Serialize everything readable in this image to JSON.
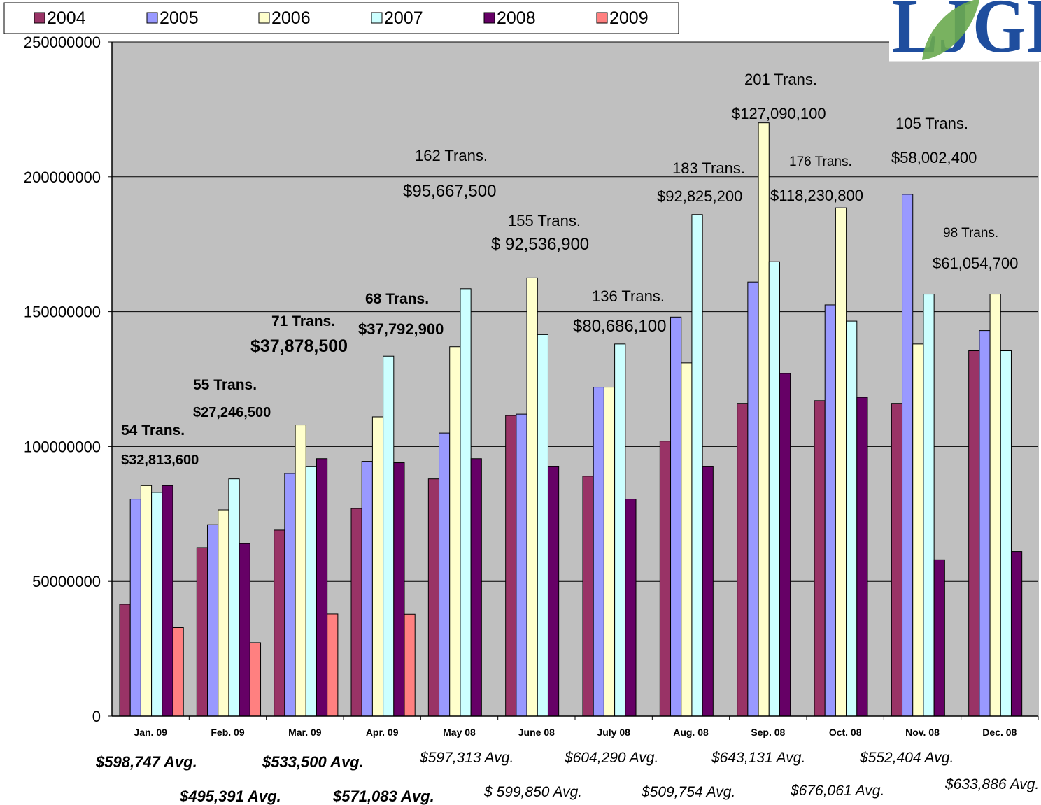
{
  "colors": {
    "plot_bg": "#c0c0c0",
    "accent_green": "#0c8a0c",
    "logo_blue": "#1f4e9e",
    "logo_leaf": "#6aaa4f"
  },
  "logo": {
    "text": "LJGI",
    "icon": "leaf-logo-icon"
  },
  "chart_data": {
    "type": "bar",
    "categories": [
      "Jan. 09",
      "Feb. 09",
      "Mar. 09",
      "Apr. 09",
      "May 08",
      "June 08",
      "July 08",
      "Aug. 08",
      "Sep. 08",
      "Oct. 08",
      "Nov. 08",
      "Dec. 08"
    ],
    "ylim": [
      0,
      250000000
    ],
    "yticks": [
      "0",
      "50000000",
      "100000000",
      "150000000",
      "200000000",
      "250000000"
    ],
    "grid": true,
    "legend": "top",
    "series": [
      {
        "name": "2004",
        "color": "#993366",
        "values": [
          41500000,
          62500000,
          69000000,
          77000000,
          88000000,
          111500000,
          89000000,
          102000000,
          116000000,
          117000000,
          116000000,
          135500000
        ]
      },
      {
        "name": "2005",
        "color": "#9999ff",
        "values": [
          80500000,
          71000000,
          90000000,
          94500000,
          105000000,
          112000000,
          122000000,
          148000000,
          161000000,
          152500000,
          193500000,
          143000000
        ]
      },
      {
        "name": "2006",
        "color": "#ffffcc",
        "values": [
          85500000,
          76500000,
          108000000,
          111000000,
          137000000,
          162500000,
          122000000,
          131000000,
          220000000,
          188500000,
          138000000,
          156500000
        ]
      },
      {
        "name": "2007",
        "color": "#ccffff",
        "values": [
          83000000,
          88000000,
          92500000,
          133500000,
          158500000,
          141500000,
          138000000,
          186000000,
          168500000,
          146500000,
          156500000,
          135500000
        ]
      },
      {
        "name": "2008",
        "color": "#660066",
        "values": [
          85500000,
          64000000,
          95500000,
          94000000,
          95500000,
          92500000,
          80500000,
          92500000,
          127090100,
          118230800,
          58002400,
          61054700
        ]
      },
      {
        "name": "2009",
        "color": "#ff8080",
        "values": [
          32813600,
          27246500,
          37878500,
          37792900,
          null,
          null,
          null,
          null,
          null,
          null,
          null,
          null
        ]
      }
    ],
    "annotations": [
      {
        "trans": "54 Trans.",
        "amount": "$32,813,600",
        "green": true,
        "bold": true
      },
      {
        "trans": "55 Trans.",
        "amount": "$27,246,500",
        "green": true,
        "bold": true
      },
      {
        "trans": "71 Trans.",
        "amount": "$37,878,500",
        "green": true,
        "bold": true
      },
      {
        "trans": "68 Trans.",
        "amount": "$37,792,900",
        "green": true,
        "bold": true
      },
      {
        "trans": "162 Trans.",
        "amount": "$95,667,500",
        "green": false,
        "bold": false
      },
      {
        "trans": "155 Trans.",
        "amount": "$ 92,536,900",
        "green": false,
        "bold": false
      },
      {
        "trans": "136 Trans.",
        "amount": "$80,686,100",
        "green": false,
        "bold": false
      },
      {
        "trans": "183 Trans.",
        "amount": "$92,825,200",
        "green": false,
        "bold": false
      },
      {
        "trans": "201 Trans.",
        "amount": "$127,090,100",
        "green": false,
        "bold": false
      },
      {
        "trans": "176 Trans.",
        "amount": "$118,230,800",
        "green": false,
        "bold": false
      },
      {
        "trans": "105 Trans.",
        "amount": "$58,002,400",
        "green": false,
        "bold": false
      },
      {
        "trans": "98 Trans.",
        "amount": "$61,054,700",
        "green": false,
        "bold": false
      }
    ],
    "averages": [
      {
        "text": "$598,747 Avg.",
        "bold": true
      },
      {
        "text": "$495,391 Avg.",
        "bold": true
      },
      {
        "text": "$533,500 Avg.",
        "bold": true
      },
      {
        "text": "$571,083 Avg.",
        "bold": true
      },
      {
        "text": "$597,313 Avg.",
        "bold": false
      },
      {
        "text": "$ 599,850 Avg.",
        "bold": false
      },
      {
        "text": "$604,290 Avg.",
        "bold": false
      },
      {
        "text": "$509,754 Avg.",
        "bold": false
      },
      {
        "text": "$643,131 Avg.",
        "bold": false
      },
      {
        "text": "$676,061 Avg.",
        "bold": false
      },
      {
        "text": "$552,404 Avg.",
        "bold": false
      },
      {
        "text": "$633,886 Avg.",
        "bold": false
      }
    ]
  }
}
